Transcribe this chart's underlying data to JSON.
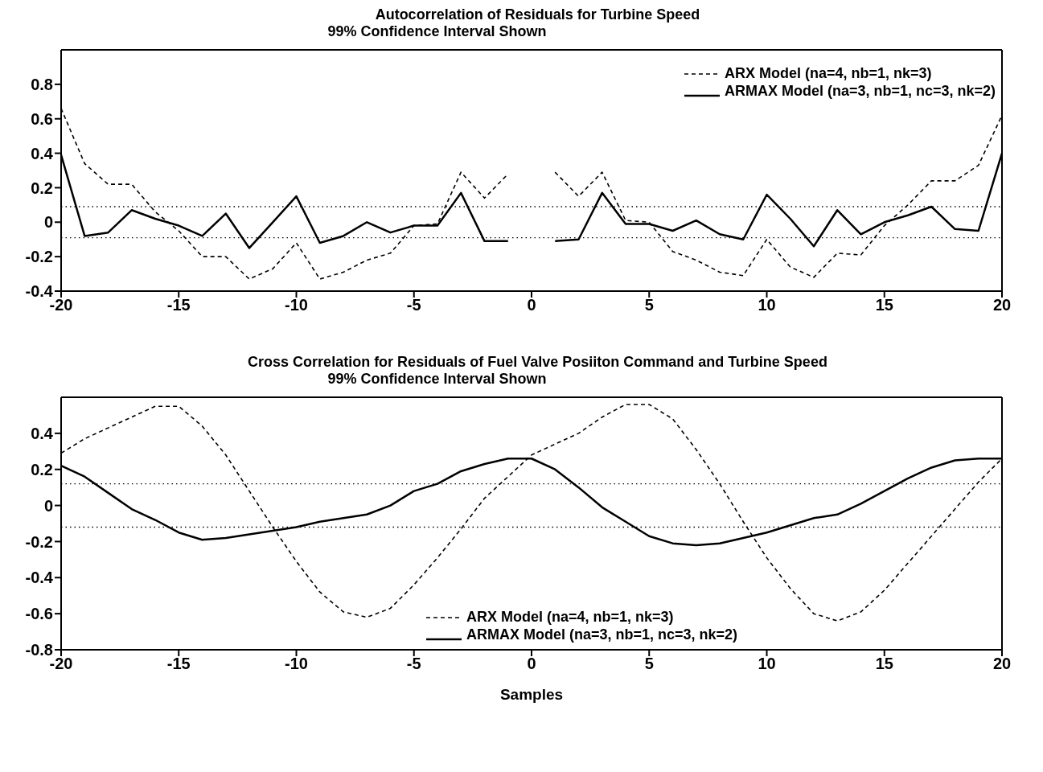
{
  "chart_data": [
    {
      "type": "line",
      "title": "Autocorrelation of Residuals for Turbine Speed",
      "subtitle": "99% Confidence Interval Shown",
      "x": [
        -20,
        -19,
        -18,
        -17,
        -16,
        -15,
        -14,
        -13,
        -12,
        -11,
        -10,
        -9,
        -8,
        -7,
        -6,
        -5,
        -4,
        -3,
        -2,
        -1,
        0,
        1,
        2,
        3,
        4,
        5,
        6,
        7,
        8,
        9,
        10,
        11,
        12,
        13,
        14,
        15,
        16,
        17,
        18,
        19,
        20
      ],
      "series": [
        {
          "name": "ARX Model (na=4, nb=1, nk=3)",
          "color": "#000000",
          "line_style": "dashed",
          "values": [
            0.66,
            0.34,
            0.22,
            0.22,
            0.06,
            -0.05,
            -0.2,
            -0.2,
            -0.33,
            -0.27,
            -0.12,
            -0.33,
            -0.29,
            -0.22,
            -0.18,
            -0.02,
            -0.01,
            0.29,
            0.14,
            0.28,
            null,
            0.29,
            0.15,
            0.29,
            0.01,
            0.0,
            -0.17,
            -0.22,
            -0.29,
            -0.31,
            -0.1,
            -0.26,
            -0.32,
            -0.18,
            -0.19,
            -0.02,
            0.1,
            0.24,
            0.24,
            0.33,
            0.62
          ]
        },
        {
          "name": "ARMAX Model (na=3, nb=1, nc=3, nk=2)",
          "color": "#000000",
          "line_style": "solid",
          "values": [
            0.39,
            -0.08,
            -0.06,
            0.07,
            0.02,
            -0.02,
            -0.08,
            0.05,
            -0.15,
            0.0,
            0.15,
            -0.12,
            -0.08,
            0.0,
            -0.06,
            -0.02,
            -0.02,
            0.17,
            -0.11,
            -0.11,
            null,
            -0.11,
            -0.1,
            0.17,
            -0.01,
            -0.01,
            -0.05,
            0.01,
            -0.07,
            -0.1,
            0.16,
            0.02,
            -0.14,
            0.07,
            -0.07,
            0.0,
            0.04,
            0.09,
            -0.04,
            -0.05,
            0.4
          ]
        }
      ],
      "xlim": [
        -20,
        20
      ],
      "xticks": [
        -20,
        -15,
        -10,
        -5,
        0,
        5,
        10,
        15,
        20
      ],
      "ylim": [
        -0.4,
        1
      ],
      "yticks": [
        -0.4,
        -0.2,
        0,
        0.2,
        0.4,
        0.6,
        0.8
      ],
      "ref_lines": [
        {
          "axis": "y",
          "value": 0.09,
          "color": "#000000",
          "line_style": "dotted"
        },
        {
          "axis": "y",
          "value": -0.09,
          "color": "#000000",
          "line_style": "dotted"
        }
      ],
      "legend": "top right",
      "marker": "none"
    },
    {
      "type": "line",
      "title": "Cross Correlation for Residuals of Fuel Valve Posiiton Command and Turbine Speed",
      "subtitle": "99% Confidence Interval Shown",
      "xlabel": "Samples",
      "x": [
        -20,
        -19,
        -18,
        -17,
        -16,
        -15,
        -14,
        -13,
        -12,
        -11,
        -10,
        -9,
        -8,
        -7,
        -6,
        -5,
        -4,
        -3,
        -2,
        -1,
        0,
        1,
        2,
        3,
        4,
        5,
        6,
        7,
        8,
        9,
        10,
        11,
        12,
        13,
        14,
        15,
        16,
        17,
        18,
        19,
        20
      ],
      "series": [
        {
          "name": "ARX Model (na=4, nb=1, nk=3)",
          "color": "#000000",
          "line_style": "dashed",
          "values": [
            0.29,
            0.37,
            0.43,
            0.49,
            0.55,
            0.55,
            0.44,
            0.28,
            0.08,
            -0.12,
            -0.31,
            -0.48,
            -0.59,
            -0.62,
            -0.57,
            -0.44,
            -0.29,
            -0.13,
            0.04,
            0.16,
            0.28,
            0.34,
            0.4,
            0.49,
            0.56,
            0.56,
            0.48,
            0.31,
            0.12,
            -0.09,
            -0.29,
            -0.46,
            -0.6,
            -0.64,
            -0.59,
            -0.47,
            -0.32,
            -0.17,
            -0.02,
            0.13,
            0.26
          ]
        },
        {
          "name": "ARMAX Model (na=3, nb=1, nc=3, nk=2)",
          "color": "#000000",
          "line_style": "solid",
          "values": [
            0.22,
            0.16,
            0.07,
            -0.02,
            -0.08,
            -0.15,
            -0.19,
            -0.18,
            -0.16,
            -0.14,
            -0.12,
            -0.09,
            -0.07,
            -0.05,
            0.0,
            0.08,
            0.12,
            0.19,
            0.23,
            0.26,
            0.26,
            0.2,
            0.1,
            -0.01,
            -0.09,
            -0.17,
            -0.21,
            -0.22,
            -0.21,
            -0.18,
            -0.15,
            -0.11,
            -0.07,
            -0.05,
            0.01,
            0.08,
            0.15,
            0.21,
            0.25,
            0.26,
            0.26
          ]
        }
      ],
      "xlim": [
        -20,
        20
      ],
      "xticks": [
        -20,
        -15,
        -10,
        -5,
        0,
        5,
        10,
        15,
        20
      ],
      "ylim": [
        -0.8,
        0.6
      ],
      "yticks": [
        -0.8,
        -0.6,
        -0.4,
        -0.2,
        0,
        0.2,
        0.4
      ],
      "ref_lines": [
        {
          "axis": "y",
          "value": 0.12,
          "color": "#000000",
          "line_style": "dotted"
        },
        {
          "axis": "y",
          "value": -0.12,
          "color": "#000000",
          "line_style": "dotted"
        }
      ],
      "legend": "bottom",
      "marker": "none"
    }
  ]
}
